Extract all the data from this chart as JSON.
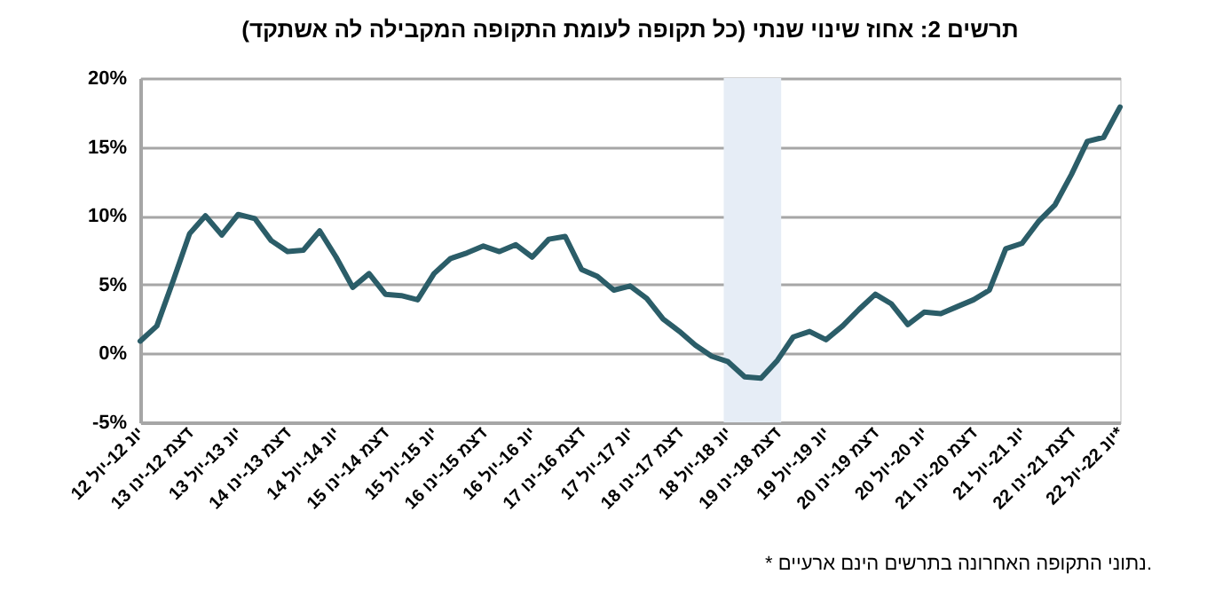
{
  "chart_data": {
    "type": "line",
    "title": "תרשים 2: אחוז שינוי שנתי (כל תקופה לעומת התקופה המקבילה לה אשתקד)",
    "x": [
      "2012-07",
      "2012-09",
      "2012-11",
      "2013-01",
      "2013-03",
      "2013-05",
      "2013-07",
      "2013-09",
      "2013-11",
      "2014-01",
      "2014-03",
      "2014-05",
      "2014-07",
      "2014-09",
      "2014-11",
      "2015-01",
      "2015-03",
      "2015-05",
      "2015-07",
      "2015-09",
      "2015-11",
      "2016-01",
      "2016-03",
      "2016-05",
      "2016-07",
      "2016-09",
      "2016-11",
      "2017-01",
      "2017-03",
      "2017-05",
      "2017-07",
      "2017-09",
      "2017-11",
      "2018-01",
      "2018-03",
      "2018-05",
      "2018-07",
      "2018-09",
      "2018-11",
      "2019-01",
      "2019-03",
      "2019-05",
      "2019-07",
      "2019-09",
      "2019-11",
      "2020-01",
      "2020-03",
      "2020-05",
      "2020-07",
      "2020-09",
      "2020-11",
      "2021-01",
      "2021-03",
      "2021-05",
      "2021-07",
      "2021-09",
      "2021-11",
      "2022-01",
      "2022-03",
      "2022-05",
      "2022-07"
    ],
    "series": [
      {
        "color": "#2b5d68",
        "values": [
          0.9,
          2.0,
          5.3,
          8.7,
          10.0,
          8.6,
          10.1,
          9.8,
          8.2,
          7.4,
          7.5,
          8.9,
          7.0,
          4.8,
          5.8,
          4.3,
          4.2,
          3.9,
          5.8,
          6.9,
          7.3,
          7.8,
          7.4,
          7.9,
          7.0,
          8.3,
          8.5,
          6.1,
          5.6,
          4.6,
          4.9,
          4.0,
          2.5,
          1.6,
          0.6,
          -0.2,
          -0.6,
          -1.7,
          -1.8,
          -0.5,
          1.2,
          1.6,
          1.0,
          2.0,
          3.2,
          4.3,
          3.6,
          2.1,
          3.0,
          2.9,
          3.4,
          3.9,
          4.6,
          7.6,
          8.0,
          9.6,
          10.8,
          13.0,
          15.4,
          15.7,
          17.9
        ]
      }
    ],
    "xlim": [
      "2012-07",
      "2022-07"
    ],
    "xticks": [
      {
        "value": "2012-07",
        "label": "יונ 12-יול 12"
      },
      {
        "value": "2013-01",
        "label": "דצמ 12-ינו 13"
      },
      {
        "value": "2013-07",
        "label": "יונ 13-יול 13"
      },
      {
        "value": "2014-01",
        "label": "דצמ 13-ינו 14"
      },
      {
        "value": "2014-07",
        "label": "יונ 14-יול 14"
      },
      {
        "value": "2015-01",
        "label": "דצמ 14-ינו 15"
      },
      {
        "value": "2015-07",
        "label": "יונ 15-יול 15"
      },
      {
        "value": "2016-01",
        "label": "דצמ 15-ינו 16"
      },
      {
        "value": "2016-07",
        "label": "יונ 16-יול 16"
      },
      {
        "value": "2017-01",
        "label": "דצמ 16-ינו 17"
      },
      {
        "value": "2017-07",
        "label": "יונ 17-יול 17"
      },
      {
        "value": "2018-01",
        "label": "דצמ 17-ינו 18"
      },
      {
        "value": "2018-07",
        "label": "יונ 18-יול 18"
      },
      {
        "value": "2019-01",
        "label": "דצמ 18-ינו 19"
      },
      {
        "value": "2019-07",
        "label": "יונ 19-יול 19"
      },
      {
        "value": "2020-01",
        "label": "דצמ 19-ינו 20"
      },
      {
        "value": "2020-07",
        "label": "יונ 20-יול 20"
      },
      {
        "value": "2021-01",
        "label": "דצמ 20-ינו 21"
      },
      {
        "value": "2021-07",
        "label": "יונ 21-יול 21"
      },
      {
        "value": "2022-01",
        "label": "דצמ 21-ינו 22"
      },
      {
        "value": "2022-07",
        "label": "יונ 22-יול 22*"
      }
    ],
    "ylim": [
      -5,
      20
    ],
    "yticks": [
      {
        "value": -5,
        "label": "-5%"
      },
      {
        "value": 0,
        "label": "0%"
      },
      {
        "value": 5,
        "label": "5%"
      },
      {
        "value": 10,
        "label": "10%"
      },
      {
        "value": 15,
        "label": "15%"
      },
      {
        "value": 20,
        "label": "20%"
      }
    ],
    "bands": [
      {
        "axis": "x",
        "from": "2018-06-15",
        "to": "2019-01-15",
        "color": "#e6edf6"
      }
    ],
    "grid": "y",
    "line_style": "solid",
    "annotations": [
      "* נתוני התקופה האחרונה בתרשים הינם ארעיים."
    ]
  }
}
